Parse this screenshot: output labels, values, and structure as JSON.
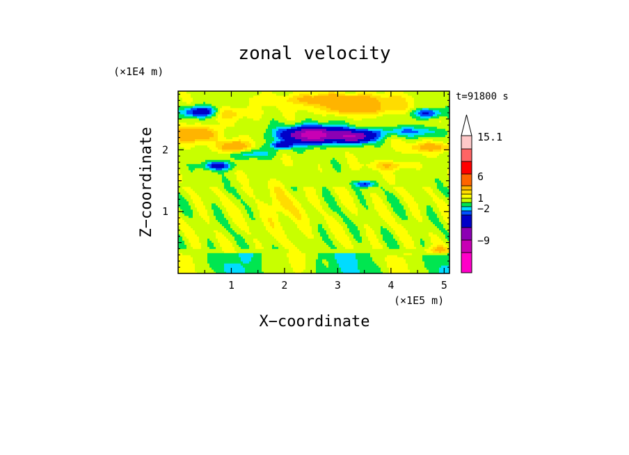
{
  "chart_data": {
    "type": "heatmap",
    "title": "zonal velocity",
    "xlabel": "X−coordinate",
    "ylabel": "Z−coordinate",
    "x_scale_note": "(×1E5 m)",
    "y_scale_note": "(×1E4 m)",
    "time_label": "t=91800 s",
    "xlim": [
      0,
      5.1
    ],
    "ylim": [
      0,
      2.95
    ],
    "x_ticks": [
      1,
      2,
      3,
      4,
      5
    ],
    "y_ticks": [
      1,
      2
    ],
    "colorbar": {
      "labels": [
        "15.1",
        "6",
        "1",
        "−2",
        "−9"
      ],
      "label_values": [
        15.1,
        6,
        1,
        -2,
        -9
      ],
      "levels": [
        -15,
        -12,
        -9,
        -6,
        -3,
        -2,
        -1,
        0,
        1,
        2,
        3,
        6,
        9,
        12,
        15.1
      ],
      "colors": [
        "#ff00c8",
        "#c800b4",
        "#8c00b4",
        "#0000c8",
        "#0050ff",
        "#00dcff",
        "#00e650",
        "#c8ff00",
        "#ffff00",
        "#ffdc00",
        "#ffb400",
        "#ff6400",
        "#ff0000",
        "#ff6464",
        "#ffc8c8"
      ]
    },
    "note": "Zonal velocity field: mostly near zero (yellow/green) below Z≈1.6E4 m; alternating positive (orange) and negative (blue) bands in upper levels. Strongest negative core near X≈2.3–3.5E5 m, Z≈2.2E4 m."
  }
}
